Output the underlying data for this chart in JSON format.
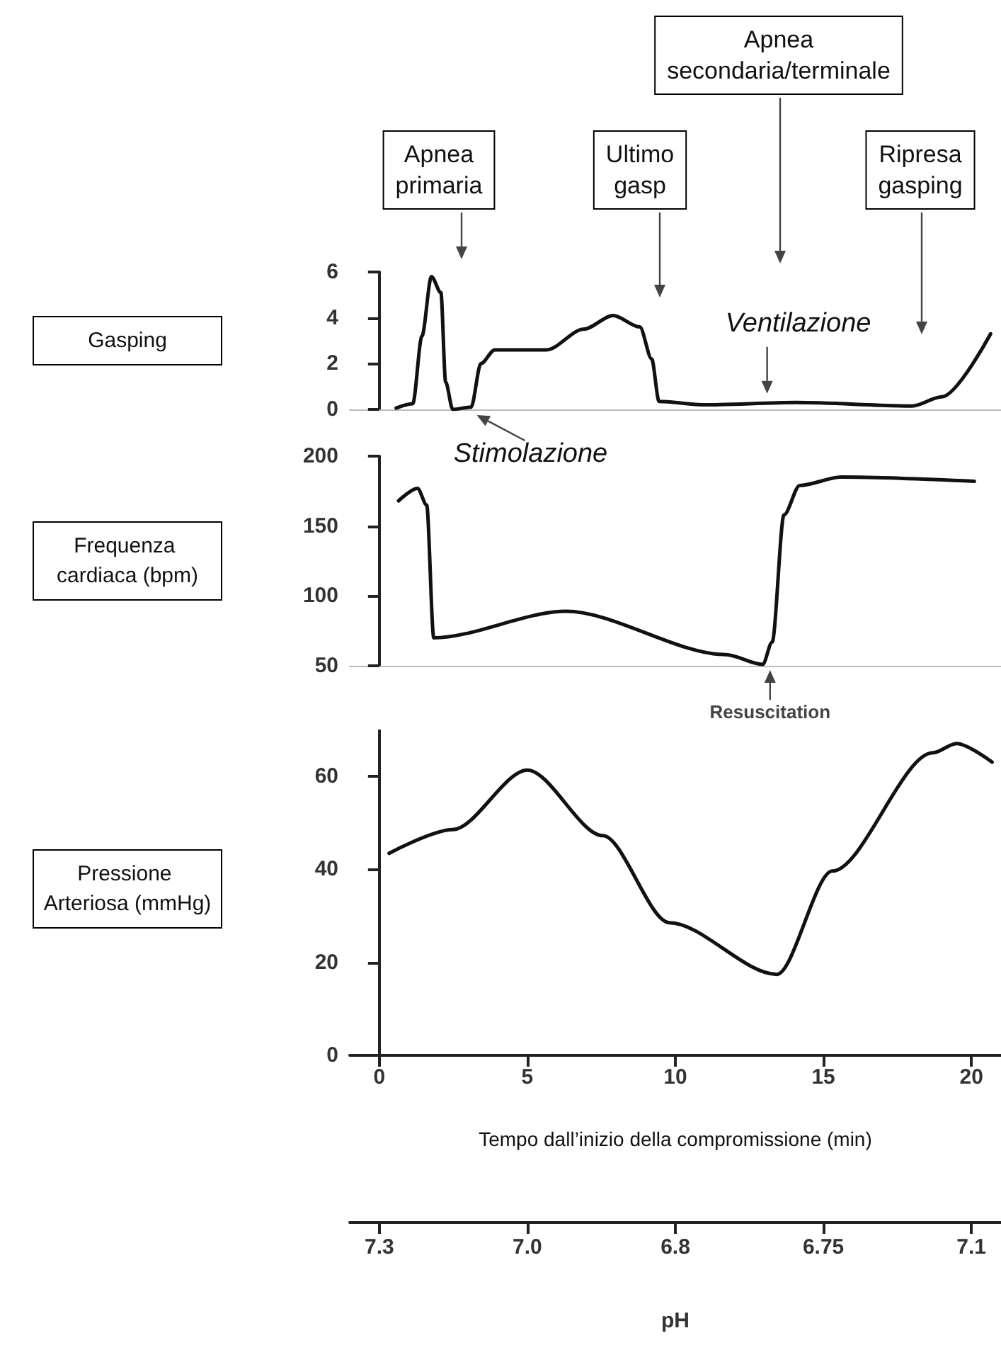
{
  "chart_data": [
    {
      "type": "line",
      "ylabel": "Gasping",
      "x": [
        0.57,
        1.13,
        1.44,
        1.76,
        2.08,
        2.24,
        2.48,
        3.1,
        3.43,
        3.9,
        5.65,
        6.9,
        7.9,
        8.8,
        9.2,
        9.45,
        10.9,
        14.1,
        18.0,
        19.0,
        20.65
      ],
      "series": [
        {
          "color": "#111111",
          "values": [
            0.06,
            0.25,
            3.2,
            5.8,
            5.1,
            1.2,
            0,
            0.1,
            2.0,
            2.6,
            2.6,
            3.5,
            4.1,
            3.6,
            2.2,
            0.35,
            0.2,
            0.3,
            0.15,
            0.55,
            3.3
          ]
        }
      ],
      "xlim": [
        -1,
        21
      ],
      "ylim": [
        0,
        6
      ],
      "yticks": [
        0,
        2,
        4,
        6
      ],
      "tick_labels": "y",
      "annotations": [
        "Apnea primaria",
        {
          "text": "Stimolazione",
          "x": 3.1,
          "y": 0
        },
        "Ultimo gasp",
        {
          "text": "Ventilazione",
          "x": 13.1,
          "y": 0.5
        },
        "Apnea secondaria/terminale",
        "Ripresa gasping"
      ]
    },
    {
      "type": "line",
      "ylabel": "Frequenza cardiaca (bpm)",
      "x": [
        0.65,
        1.29,
        1.6,
        1.84,
        6.3,
        11.7,
        12.95,
        13.27,
        13.67,
        14.2,
        15.6,
        20.1
      ],
      "series": [
        {
          "color": "#111111",
          "values": [
            168,
            177,
            165,
            70,
            89,
            58,
            51,
            67,
            158,
            179,
            185,
            182
          ]
        }
      ],
      "xlim": [
        -1,
        21
      ],
      "ylim": [
        50,
        200
      ],
      "yticks": [
        50,
        100,
        150,
        200
      ],
      "tick_labels": "y",
      "annotations": [
        {
          "text": "Resuscitation",
          "x": 13.2,
          "y": 50
        }
      ]
    },
    {
      "type": "line",
      "ylabel": "Pressione Arteriosa (mmHg)",
      "xlabel": "Tempo dall’inizio della compromissione (min)",
      "x2label": "pH",
      "x": [
        0.33,
        2.48,
        5.0,
        7.55,
        9.8,
        13.43,
        15.3,
        18.7,
        19.5,
        20.7
      ],
      "series": [
        {
          "color": "#111111",
          "values": [
            43.4,
            48.5,
            61.3,
            47.2,
            28.5,
            17.4,
            39.6,
            65,
            67,
            63
          ]
        }
      ],
      "xlim": [
        -1,
        21
      ],
      "xticks": [
        0,
        5,
        10,
        15,
        20
      ],
      "ylim": [
        0,
        70
      ],
      "yticks": [
        0,
        20,
        40,
        60
      ],
      "annotations": [
        "7.3",
        "7.0",
        "6.8",
        "6.75",
        "7.1"
      ]
    }
  ]
}
